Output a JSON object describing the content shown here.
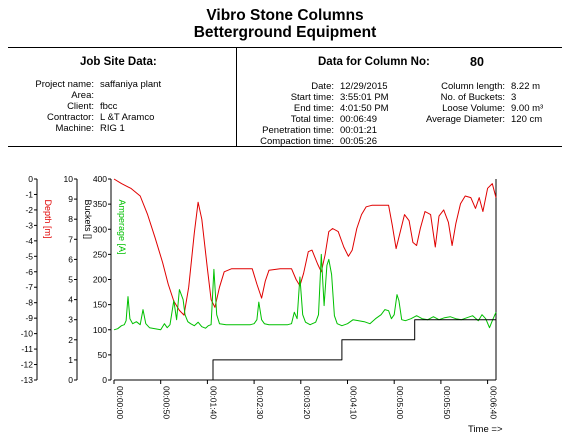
{
  "header": {
    "title_line1": "Vibro Stone Columns",
    "title_line2": "Betterground Equipment",
    "left_heading": "Job Site Data:",
    "right_heading_label": "Data for Column No:",
    "column_no": "80"
  },
  "job_site": [
    {
      "label": "Project name:",
      "value": "saffaniya plant"
    },
    {
      "label": "Area:",
      "value": ""
    },
    {
      "label": "Client:",
      "value": "fbcc"
    },
    {
      "label": "Contractor:",
      "value": "L &T Aramco"
    },
    {
      "label": "Machine:",
      "value": "RIG 1"
    }
  ],
  "column_times": [
    {
      "label": "Date:",
      "value": "12/29/2015"
    },
    {
      "label": "Start time:",
      "value": "3:55:01 PM"
    },
    {
      "label": "End time:",
      "value": "4:01:50 PM"
    },
    {
      "label": "Total time:",
      "value": "00:06:49"
    },
    {
      "label": "Penetration time:",
      "value": "00:01:21"
    },
    {
      "label": "Compaction time:",
      "value": "00:05:26"
    }
  ],
  "column_stats": [
    {
      "label": "Column length:",
      "value": "8.22 m"
    },
    {
      "label": "No. of Buckets:",
      "value": "3"
    },
    {
      "label": "Loose Volume:",
      "value": "9.00 m³"
    },
    {
      "label": "Average Diameter:",
      "value": "120 cm"
    }
  ],
  "chart_data": {
    "type": "line",
    "xlabel": "Time =>",
    "x_unit": "seconds",
    "xlim": [
      0,
      409
    ],
    "x_ticks": [
      {
        "t": 0,
        "label": "00:00:00"
      },
      {
        "t": 50,
        "label": "00:00:50"
      },
      {
        "t": 100,
        "label": "00:01:40"
      },
      {
        "t": 150,
        "label": "00:02:30"
      },
      {
        "t": 200,
        "label": "00:03:20"
      },
      {
        "t": 250,
        "label": "00:04:10"
      },
      {
        "t": 300,
        "label": "00:05:00"
      },
      {
        "t": 350,
        "label": "00:05:50"
      },
      {
        "t": 400,
        "label": "00:06:40"
      }
    ],
    "axes": [
      {
        "name": "Depth [m]",
        "color": "#e00000",
        "range": [
          -13,
          0
        ],
        "ticks": [
          "0",
          "-1",
          "-2",
          "-3",
          "-4",
          "-5",
          "-6",
          "-7",
          "-8",
          "-9",
          "-10",
          "-11",
          "-12",
          "-13"
        ]
      },
      {
        "name": "Buckets []",
        "color": "#000000",
        "range": [
          0,
          10
        ],
        "ticks": [
          "10",
          "9",
          "8",
          "7",
          "6",
          "5",
          "4",
          "3",
          "2",
          "1",
          "0"
        ]
      },
      {
        "name": "Amperage [A]",
        "color": "#00c000",
        "range": [
          0,
          400
        ],
        "ticks": [
          "400",
          "350",
          "300",
          "250",
          "200",
          "150",
          "100",
          "50",
          "0"
        ]
      }
    ],
    "series": [
      {
        "name": "Depth [m]",
        "axis": 0,
        "color": "#e00000",
        "points": [
          [
            0,
            0
          ],
          [
            8,
            -0.3
          ],
          [
            18,
            -0.6
          ],
          [
            28,
            -1.1
          ],
          [
            36,
            -2.3
          ],
          [
            44,
            -3.8
          ],
          [
            52,
            -5.4
          ],
          [
            58,
            -6.8
          ],
          [
            64,
            -7.9
          ],
          [
            70,
            -8.5
          ],
          [
            75,
            -8.8
          ],
          [
            80,
            -7
          ],
          [
            86,
            -3.5
          ],
          [
            90,
            -1.5
          ],
          [
            94,
            -2.6
          ],
          [
            100,
            -5.8
          ],
          [
            104,
            -7.8
          ],
          [
            108,
            -8.3
          ],
          [
            113,
            -7
          ],
          [
            118,
            -6
          ],
          [
            126,
            -5.8
          ],
          [
            138,
            -5.8
          ],
          [
            148,
            -5.8
          ],
          [
            153,
            -6.8
          ],
          [
            158,
            -7.7
          ],
          [
            162,
            -6.6
          ],
          [
            166,
            -5.9
          ],
          [
            178,
            -5.8
          ],
          [
            190,
            -5.8
          ],
          [
            195,
            -6.5
          ],
          [
            199,
            -6.9
          ],
          [
            203,
            -6.1
          ],
          [
            208,
            -4.7
          ],
          [
            212,
            -4.6
          ],
          [
            218,
            -5.5
          ],
          [
            222,
            -6.0
          ],
          [
            226,
            -4.9
          ],
          [
            230,
            -3.4
          ],
          [
            234,
            -3.2
          ],
          [
            240,
            -3.4
          ],
          [
            246,
            -4.4
          ],
          [
            251,
            -5.0
          ],
          [
            255,
            -4.6
          ],
          [
            260,
            -3.2
          ],
          [
            265,
            -2.3
          ],
          [
            270,
            -1.8
          ],
          [
            276,
            -1.7
          ],
          [
            286,
            -1.7
          ],
          [
            294,
            -1.7
          ],
          [
            298,
            -3.0
          ],
          [
            302,
            -4.5
          ],
          [
            307,
            -3.3
          ],
          [
            311,
            -2.3
          ],
          [
            316,
            -2.7
          ],
          [
            320,
            -4.1
          ],
          [
            324,
            -4.3
          ],
          [
            328,
            -3.2
          ],
          [
            333,
            -2.1
          ],
          [
            339,
            -2.3
          ],
          [
            344,
            -4.4
          ],
          [
            348,
            -2.4
          ],
          [
            353,
            -2.0
          ],
          [
            358,
            -2.8
          ],
          [
            362,
            -4.3
          ],
          [
            366,
            -2.9
          ],
          [
            371,
            -1.6
          ],
          [
            376,
            -1.1
          ],
          [
            382,
            -1.2
          ],
          [
            387,
            -1.9
          ],
          [
            391,
            -1.2
          ],
          [
            395,
            -2.1
          ],
          [
            400,
            -0.6
          ],
          [
            405,
            -0.3
          ],
          [
            409,
            -1.2
          ]
        ]
      },
      {
        "name": "Amperage [A]",
        "axis": 2,
        "color": "#00c000",
        "points": [
          [
            0,
            100
          ],
          [
            4,
            102
          ],
          [
            8,
            108
          ],
          [
            11,
            110
          ],
          [
            13,
            118
          ],
          [
            15,
            166
          ],
          [
            17,
            122
          ],
          [
            20,
            112
          ],
          [
            24,
            116
          ],
          [
            28,
            110
          ],
          [
            31,
            140
          ],
          [
            34,
            112
          ],
          [
            38,
            104
          ],
          [
            44,
            102
          ],
          [
            50,
            100
          ],
          [
            54,
            112
          ],
          [
            57,
            104
          ],
          [
            60,
            110
          ],
          [
            64,
            158
          ],
          [
            67,
            120
          ],
          [
            70,
            180
          ],
          [
            74,
            160
          ],
          [
            76,
            130
          ],
          [
            79,
            116
          ],
          [
            82,
            112
          ],
          [
            86,
            108
          ],
          [
            90,
            115
          ],
          [
            94,
            106
          ],
          [
            98,
            103
          ],
          [
            101,
            108
          ],
          [
            104,
            110
          ],
          [
            107,
            220
          ],
          [
            110,
            130
          ],
          [
            113,
            112
          ],
          [
            120,
            110
          ],
          [
            130,
            110
          ],
          [
            140,
            110
          ],
          [
            146,
            110
          ],
          [
            150,
            112
          ],
          [
            153,
            120
          ],
          [
            155,
            155
          ],
          [
            158,
            120
          ],
          [
            161,
            112
          ],
          [
            166,
            110
          ],
          [
            176,
            110
          ],
          [
            186,
            110
          ],
          [
            190,
            112
          ],
          [
            193,
            135
          ],
          [
            196,
            122
          ],
          [
            199,
            205
          ],
          [
            202,
            130
          ],
          [
            205,
            115
          ],
          [
            210,
            110
          ],
          [
            216,
            115
          ],
          [
            219,
            130
          ],
          [
            222,
            250
          ],
          [
            225,
            148
          ],
          [
            228,
            228
          ],
          [
            230,
            240
          ],
          [
            233,
            210
          ],
          [
            236,
            128
          ],
          [
            239,
            112
          ],
          [
            244,
            108
          ],
          [
            250,
            112
          ],
          [
            256,
            120
          ],
          [
            262,
            118
          ],
          [
            268,
            116
          ],
          [
            274,
            112
          ],
          [
            280,
            122
          ],
          [
            286,
            130
          ],
          [
            290,
            140
          ],
          [
            294,
            138
          ],
          [
            297,
            122
          ],
          [
            300,
            130
          ],
          [
            303,
            170
          ],
          [
            305,
            158
          ],
          [
            308,
            120
          ],
          [
            312,
            118
          ],
          [
            318,
            122
          ],
          [
            324,
            128
          ],
          [
            330,
            122
          ],
          [
            336,
            120
          ],
          [
            342,
            126
          ],
          [
            348,
            120
          ],
          [
            354,
            124
          ],
          [
            360,
            126
          ],
          [
            366,
            122
          ],
          [
            372,
            120
          ],
          [
            378,
            124
          ],
          [
            384,
            128
          ],
          [
            390,
            118
          ],
          [
            394,
            130
          ],
          [
            398,
            122
          ],
          [
            402,
            104
          ],
          [
            405,
            118
          ],
          [
            409,
            135
          ]
        ]
      },
      {
        "name": "Buckets []",
        "axis": 1,
        "color": "#000000",
        "points": [
          [
            106,
            0
          ],
          [
            106,
            1
          ],
          [
            244,
            1
          ],
          [
            244,
            2
          ],
          [
            322,
            2
          ],
          [
            322,
            3
          ],
          [
            409,
            3
          ]
        ]
      }
    ]
  }
}
